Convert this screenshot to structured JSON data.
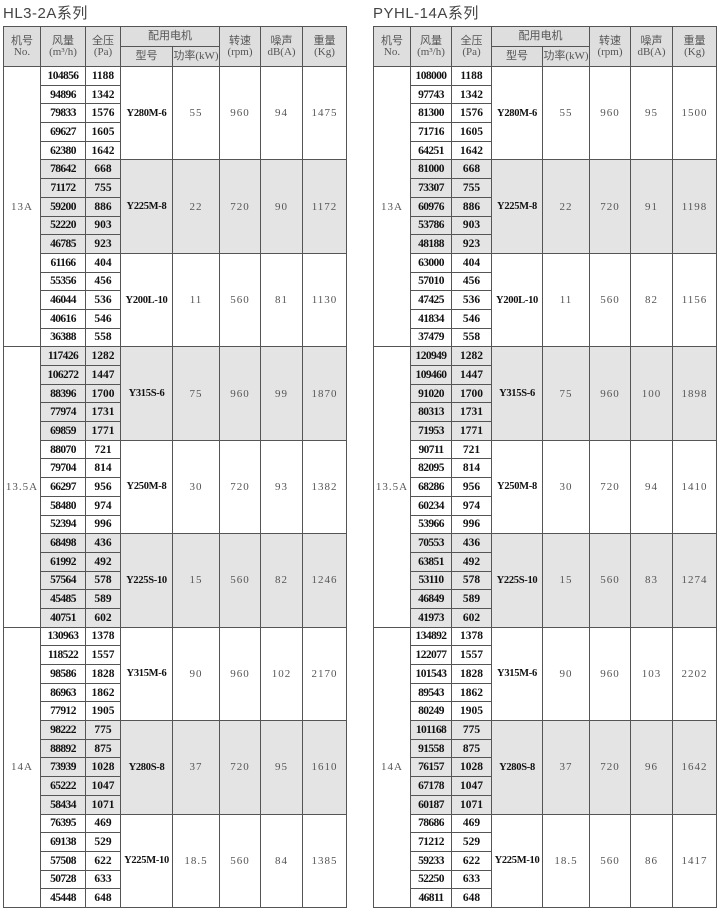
{
  "colors": {
    "header_bg": "#dedede",
    "shade_bg": "#e4e4e4",
    "border": "#555555"
  },
  "headers": {
    "no": "机号",
    "no_en": "No.",
    "flow": "风量",
    "flow_unit": "(m³/h)",
    "pressure": "全压",
    "pressure_unit": "(Pa)",
    "motor": "配用电机",
    "model": "型号",
    "power": "功率(kW)",
    "speed": "转速",
    "speed_unit": "(rpm)",
    "noise": "噪声",
    "noise_unit": "dB(A)",
    "weight": "重量",
    "weight_unit": "(Kg)"
  },
  "tables": [
    {
      "title": "HL3-2A系列",
      "sections": [
        {
          "no": "13A",
          "groups": [
            {
              "model": "Y280M-6",
              "power": "55",
              "speed": "960",
              "noise": "94",
              "weight": "1475",
              "rows": [
                [
                  "104856",
                  "1188"
                ],
                [
                  "94896",
                  "1342"
                ],
                [
                  "79833",
                  "1576"
                ],
                [
                  "69627",
                  "1605"
                ],
                [
                  "62380",
                  "1642"
                ]
              ]
            },
            {
              "model": "Y225M-8",
              "power": "22",
              "speed": "720",
              "noise": "90",
              "weight": "1172",
              "rows": [
                [
                  "78642",
                  "668"
                ],
                [
                  "71172",
                  "755"
                ],
                [
                  "59200",
                  "886"
                ],
                [
                  "52220",
                  "903"
                ],
                [
                  "46785",
                  "923"
                ]
              ]
            },
            {
              "model": "Y200L-10",
              "power": "11",
              "speed": "560",
              "noise": "81",
              "weight": "1130",
              "rows": [
                [
                  "61166",
                  "404"
                ],
                [
                  "55356",
                  "456"
                ],
                [
                  "46044",
                  "536"
                ],
                [
                  "40616",
                  "546"
                ],
                [
                  "36388",
                  "558"
                ]
              ]
            }
          ]
        },
        {
          "no": "13.5A",
          "groups": [
            {
              "model": "Y315S-6",
              "power": "75",
              "speed": "960",
              "noise": "99",
              "weight": "1870",
              "rows": [
                [
                  "117426",
                  "1282"
                ],
                [
                  "106272",
                  "1447"
                ],
                [
                  "88396",
                  "1700"
                ],
                [
                  "77974",
                  "1731"
                ],
                [
                  "69859",
                  "1771"
                ]
              ]
            },
            {
              "model": "Y250M-8",
              "power": "30",
              "speed": "720",
              "noise": "93",
              "weight": "1382",
              "rows": [
                [
                  "88070",
                  "721"
                ],
                [
                  "79704",
                  "814"
                ],
                [
                  "66297",
                  "956"
                ],
                [
                  "58480",
                  "974"
                ],
                [
                  "52394",
                  "996"
                ]
              ]
            },
            {
              "model": "Y225S-10",
              "power": "15",
              "speed": "560",
              "noise": "82",
              "weight": "1246",
              "rows": [
                [
                  "68498",
                  "436"
                ],
                [
                  "61992",
                  "492"
                ],
                [
                  "57564",
                  "578"
                ],
                [
                  "45485",
                  "589"
                ],
                [
                  "40751",
                  "602"
                ]
              ]
            }
          ]
        },
        {
          "no": "14A",
          "groups": [
            {
              "model": "Y315M-6",
              "power": "90",
              "speed": "960",
              "noise": "102",
              "weight": "2170",
              "rows": [
                [
                  "130963",
                  "1378"
                ],
                [
                  "118522",
                  "1557"
                ],
                [
                  "98586",
                  "1828"
                ],
                [
                  "86963",
                  "1862"
                ],
                [
                  "77912",
                  "1905"
                ]
              ]
            },
            {
              "model": "Y280S-8",
              "power": "37",
              "speed": "720",
              "noise": "95",
              "weight": "1610",
              "rows": [
                [
                  "98222",
                  "775"
                ],
                [
                  "88892",
                  "875"
                ],
                [
                  "73939",
                  "1028"
                ],
                [
                  "65222",
                  "1047"
                ],
                [
                  "58434",
                  "1071"
                ]
              ]
            },
            {
              "model": "Y225M-10",
              "power": "18.5",
              "speed": "560",
              "noise": "84",
              "weight": "1385",
              "rows": [
                [
                  "76395",
                  "469"
                ],
                [
                  "69138",
                  "529"
                ],
                [
                  "57508",
                  "622"
                ],
                [
                  "50728",
                  "633"
                ],
                [
                  "45448",
                  "648"
                ]
              ]
            }
          ]
        }
      ]
    },
    {
      "title": "PYHL-14A系列",
      "sections": [
        {
          "no": "13A",
          "groups": [
            {
              "model": "Y280M-6",
              "power": "55",
              "speed": "960",
              "noise": "95",
              "weight": "1500",
              "rows": [
                [
                  "108000",
                  "1188"
                ],
                [
                  "97743",
                  "1342"
                ],
                [
                  "81300",
                  "1576"
                ],
                [
                  "71716",
                  "1605"
                ],
                [
                  "64251",
                  "1642"
                ]
              ]
            },
            {
              "model": "Y225M-8",
              "power": "22",
              "speed": "720",
              "noise": "91",
              "weight": "1198",
              "rows": [
                [
                  "81000",
                  "668"
                ],
                [
                  "73307",
                  "755"
                ],
                [
                  "60976",
                  "886"
                ],
                [
                  "53786",
                  "903"
                ],
                [
                  "48188",
                  "923"
                ]
              ]
            },
            {
              "model": "Y200L-10",
              "power": "11",
              "speed": "560",
              "noise": "82",
              "weight": "1156",
              "rows": [
                [
                  "63000",
                  "404"
                ],
                [
                  "57010",
                  "456"
                ],
                [
                  "47425",
                  "536"
                ],
                [
                  "41834",
                  "546"
                ],
                [
                  "37479",
                  "558"
                ]
              ]
            }
          ]
        },
        {
          "no": "13.5A",
          "groups": [
            {
              "model": "Y315S-6",
              "power": "75",
              "speed": "960",
              "noise": "100",
              "weight": "1898",
              "rows": [
                [
                  "120949",
                  "1282"
                ],
                [
                  "109460",
                  "1447"
                ],
                [
                  "91020",
                  "1700"
                ],
                [
                  "80313",
                  "1731"
                ],
                [
                  "71953",
                  "1771"
                ]
              ]
            },
            {
              "model": "Y250M-8",
              "power": "30",
              "speed": "720",
              "noise": "94",
              "weight": "1410",
              "rows": [
                [
                  "90711",
                  "721"
                ],
                [
                  "82095",
                  "814"
                ],
                [
                  "68286",
                  "956"
                ],
                [
                  "60234",
                  "974"
                ],
                [
                  "53966",
                  "996"
                ]
              ]
            },
            {
              "model": "Y225S-10",
              "power": "15",
              "speed": "560",
              "noise": "83",
              "weight": "1274",
              "rows": [
                [
                  "70553",
                  "436"
                ],
                [
                  "63851",
                  "492"
                ],
                [
                  "53110",
                  "578"
                ],
                [
                  "46849",
                  "589"
                ],
                [
                  "41973",
                  "602"
                ]
              ]
            }
          ]
        },
        {
          "no": "14A",
          "groups": [
            {
              "model": "Y315M-6",
              "power": "90",
              "speed": "960",
              "noise": "103",
              "weight": "2202",
              "rows": [
                [
                  "134892",
                  "1378"
                ],
                [
                  "122077",
                  "1557"
                ],
                [
                  "101543",
                  "1828"
                ],
                [
                  "89543",
                  "1862"
                ],
                [
                  "80249",
                  "1905"
                ]
              ]
            },
            {
              "model": "Y280S-8",
              "power": "37",
              "speed": "720",
              "noise": "96",
              "weight": "1642",
              "rows": [
                [
                  "101168",
                  "775"
                ],
                [
                  "91558",
                  "875"
                ],
                [
                  "76157",
                  "1028"
                ],
                [
                  "67178",
                  "1047"
                ],
                [
                  "60187",
                  "1071"
                ]
              ]
            },
            {
              "model": "Y225M-10",
              "power": "18.5",
              "speed": "560",
              "noise": "86",
              "weight": "1417",
              "rows": [
                [
                  "78686",
                  "469"
                ],
                [
                  "71212",
                  "529"
                ],
                [
                  "59233",
                  "622"
                ],
                [
                  "52250",
                  "633"
                ],
                [
                  "46811",
                  "648"
                ]
              ]
            }
          ]
        }
      ]
    }
  ]
}
